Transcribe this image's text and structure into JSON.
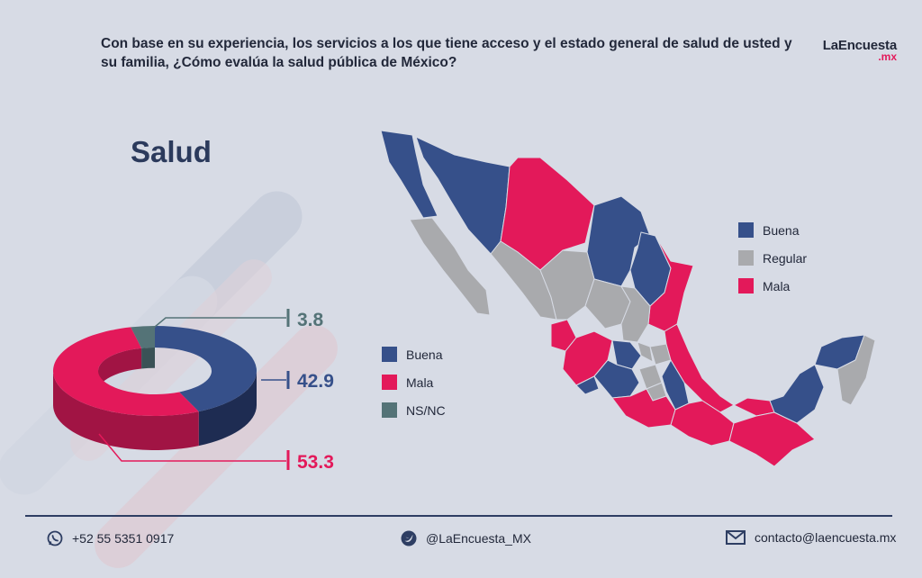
{
  "header": {
    "question": "Con base en su experiencia, los servicios a los que tiene acceso y el estado general de salud de usted y su familia, ¿Cómo evalúa la salud pública de México?",
    "brand_name": "LaEncuesta",
    "brand_tld": ".mx"
  },
  "title": "Salud",
  "colors": {
    "buena": "#36508a",
    "mala": "#e3195a",
    "nsnc": "#547377",
    "regular": "#a9aaad"
  },
  "chart_data": [
    {
      "type": "pie",
      "variant": "3d-donut",
      "title": "Salud",
      "categories": [
        "Buena",
        "Mala",
        "NS/NC"
      ],
      "values": [
        42.9,
        53.3,
        3.8
      ],
      "labels": [
        "42.9",
        "53.3",
        "3.8"
      ],
      "legend": [
        "Buena",
        "Mala",
        "NS/NC"
      ]
    },
    {
      "type": "choropleth-map",
      "region": "México",
      "legend": [
        "Buena",
        "Regular",
        "Mala"
      ]
    }
  ],
  "donut_legend": [
    {
      "label": "Buena",
      "color": "#36508a"
    },
    {
      "label": "Mala",
      "color": "#e3195a"
    },
    {
      "label": "NS/NC",
      "color": "#547377"
    }
  ],
  "map_legend": [
    {
      "label": "Buena",
      "color": "#36508a"
    },
    {
      "label": "Regular",
      "color": "#a9aaad"
    },
    {
      "label": "Mala",
      "color": "#e3195a"
    }
  ],
  "footer": {
    "phone": "+52 55 5351 0917",
    "twitter": "@LaEncuesta_MX",
    "email": "contacto@laencuesta.mx"
  }
}
